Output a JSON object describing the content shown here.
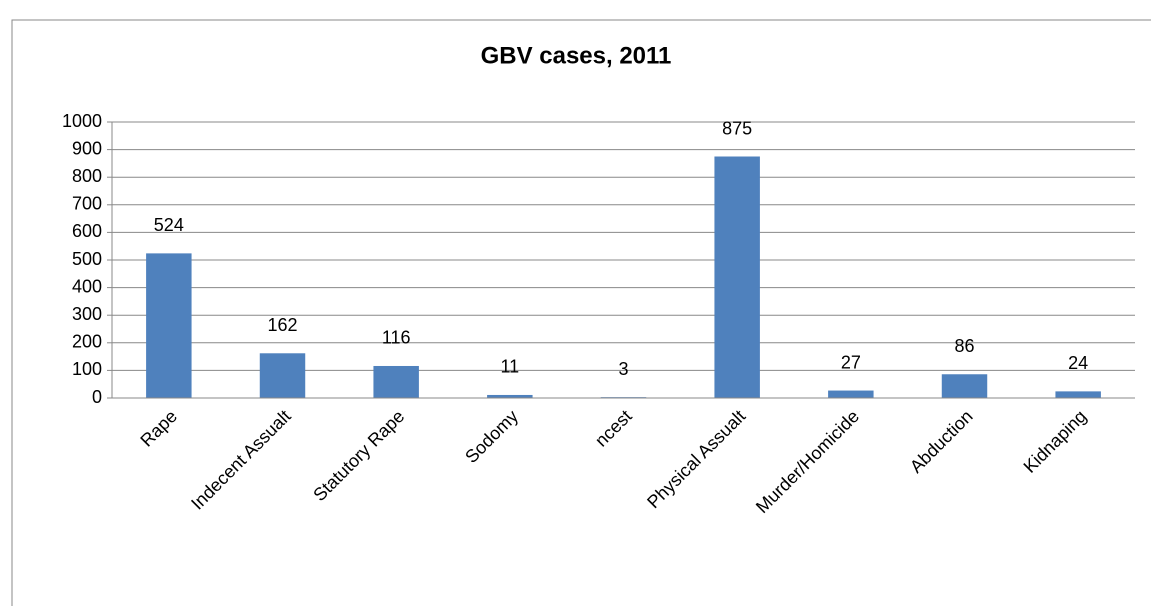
{
  "chart_data": {
    "type": "bar",
    "title": "GBV cases, 2011",
    "categories": [
      "Rape",
      "Indecent Assualt",
      "Statutory Rape",
      "Sodomy",
      "ncest",
      "Physical Assualt",
      "Murder/Homicide",
      "Abduction",
      "Kidnaping"
    ],
    "values": [
      524,
      162,
      116,
      11,
      3,
      875,
      27,
      86,
      24
    ],
    "color": "#4f81bd",
    "ylim": [
      0,
      1000
    ],
    "yticks": [
      0,
      100,
      200,
      300,
      400,
      500,
      600,
      700,
      800,
      900,
      1000
    ],
    "grid": true
  }
}
